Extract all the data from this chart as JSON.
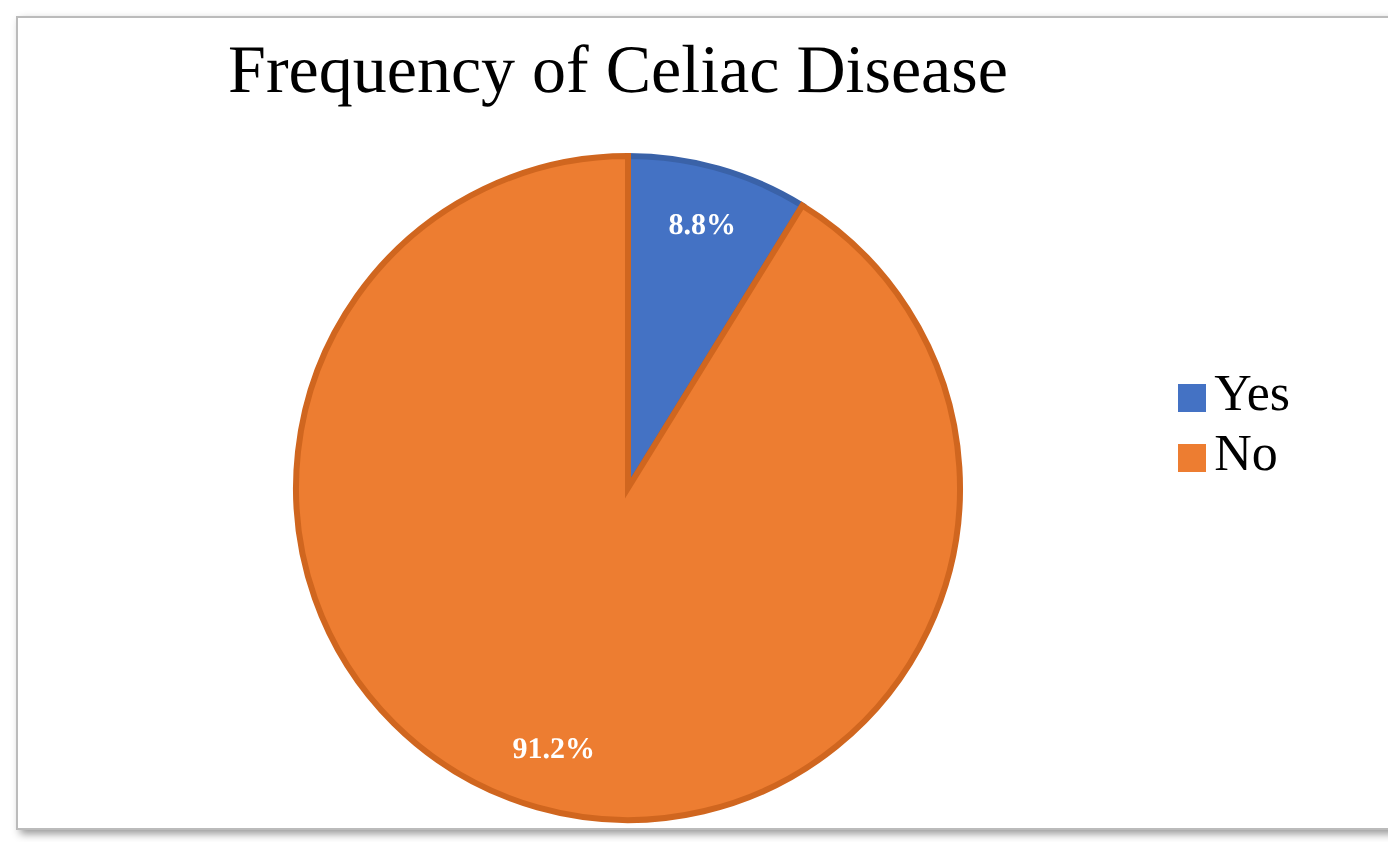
{
  "chart_data": {
    "type": "pie",
    "title": "Frequency of Celiac Disease",
    "categories": [
      "Yes",
      "No"
    ],
    "values": [
      8.8,
      91.2
    ],
    "colors": [
      "#4472c4",
      "#ed7d31"
    ],
    "value_labels": [
      "8.8%",
      "91.2%"
    ],
    "legend": "right"
  }
}
